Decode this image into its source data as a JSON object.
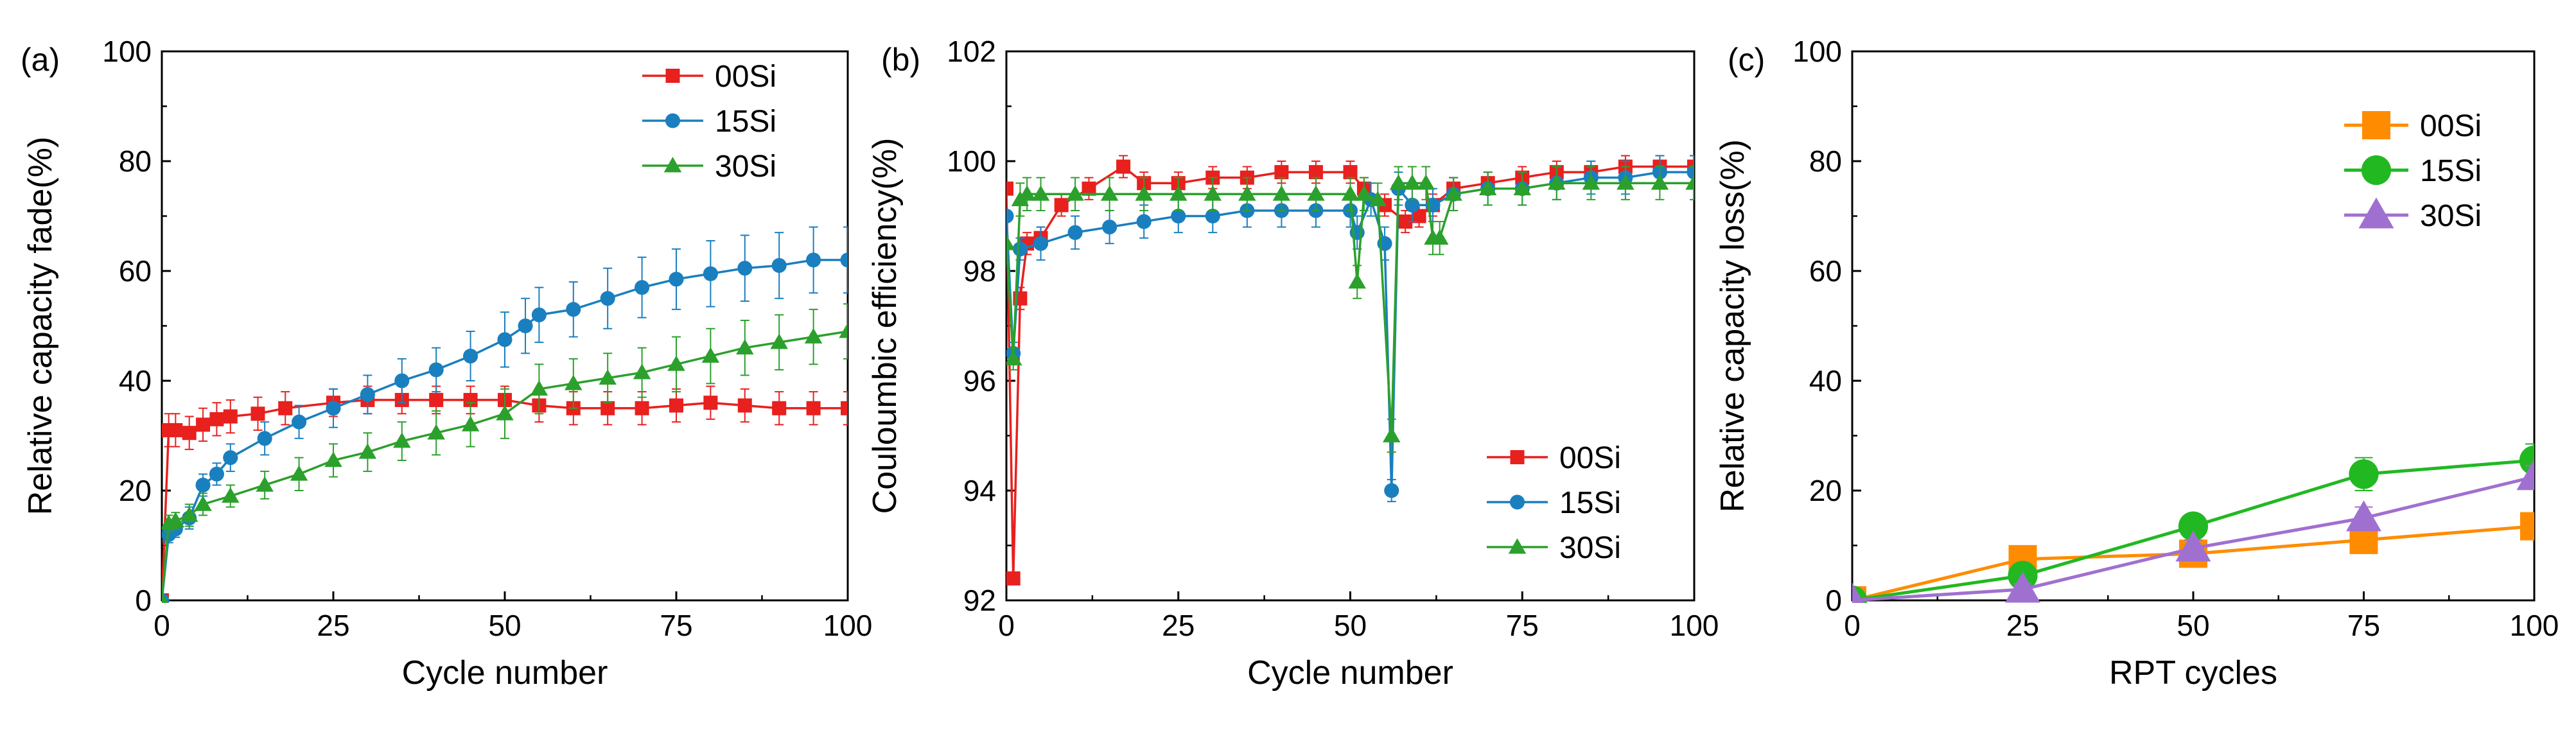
{
  "colors": {
    "s00": "#e8201e",
    "s15": "#1a7fbf",
    "s30": "#2ca02c",
    "c00": "#ff8c00",
    "c15": "#22b822",
    "c30": "#a070d0"
  },
  "chart_data": [
    {
      "id": "a",
      "type": "line",
      "panel_label": "(a)",
      "xlabel": "Cycle number",
      "ylabel": "Relative capacity fade(%)",
      "xlim": [
        0,
        100
      ],
      "ylim": [
        0,
        100
      ],
      "xticks": [
        "0",
        "25",
        "50",
        "75",
        "100"
      ],
      "yticks": [
        "0",
        "20",
        "40",
        "60",
        "80",
        "100"
      ],
      "legend_position": "top-right",
      "series": [
        {
          "name": "00Si",
          "marker": "square",
          "color_key": "s00",
          "x": [
            0,
            1,
            2,
            4,
            6,
            8,
            10,
            14,
            18,
            25,
            30,
            35,
            40,
            45,
            50,
            55,
            60,
            65,
            70,
            75,
            80,
            85,
            90,
            95,
            100
          ],
          "y": [
            0,
            31,
            31,
            30.5,
            32,
            33,
            33.5,
            34,
            35,
            36,
            36.5,
            36.5,
            36.5,
            36.5,
            36.5,
            35.5,
            35,
            35,
            35,
            35.5,
            36,
            35.5,
            35,
            35,
            35
          ],
          "err": [
            0,
            3,
            3,
            3,
            3,
            3,
            3,
            3,
            3,
            2.5,
            2.5,
            2.5,
            2.5,
            2.5,
            2.5,
            3,
            3,
            3,
            3,
            3,
            3,
            3,
            3,
            3,
            3
          ]
        },
        {
          "name": "15Si",
          "marker": "circle",
          "color_key": "s15",
          "x": [
            0,
            1,
            2,
            4,
            6,
            8,
            10,
            15,
            20,
            25,
            30,
            35,
            40,
            45,
            50,
            53,
            55,
            60,
            65,
            70,
            75,
            80,
            85,
            90,
            95,
            100
          ],
          "y": [
            0,
            12,
            13,
            15,
            21,
            23,
            26,
            29.5,
            32.5,
            35,
            37.5,
            40,
            42,
            44.5,
            47.5,
            50,
            52,
            53,
            55,
            57,
            58.5,
            59.5,
            60.5,
            61,
            62,
            62
          ],
          "err": [
            0,
            1.5,
            1.5,
            2,
            2,
            2,
            2.5,
            3,
            3,
            3.5,
            3.5,
            4,
            4,
            4.5,
            5,
            5,
            5,
            5,
            5.5,
            5.5,
            5.5,
            6,
            6,
            6,
            6,
            6
          ]
        },
        {
          "name": "30Si",
          "marker": "triangle",
          "color_key": "s30",
          "x": [
            0,
            1,
            2,
            4,
            6,
            10,
            15,
            20,
            25,
            30,
            35,
            40,
            45,
            50,
            55,
            60,
            65,
            70,
            75,
            80,
            85,
            90,
            95,
            100
          ],
          "y": [
            0,
            14,
            14.5,
            15.5,
            17.5,
            19,
            21,
            23,
            25.5,
            27,
            29,
            30.5,
            32,
            34,
            38.5,
            39.5,
            40.5,
            41.5,
            43,
            44.5,
            46,
            47,
            48,
            49
          ],
          "err": [
            0,
            1.5,
            1.5,
            2,
            2,
            2,
            2.5,
            3,
            3,
            3.5,
            3.5,
            4,
            4,
            4.5,
            4.5,
            4.5,
            4.5,
            4.5,
            5,
            5,
            5,
            5,
            5,
            5
          ]
        }
      ]
    },
    {
      "id": "b",
      "type": "line",
      "panel_label": "(b)",
      "xlabel": "Cycle number",
      "ylabel": "Couloumbic efficiency(%)",
      "xlim": [
        0,
        100
      ],
      "ylim": [
        92,
        102
      ],
      "xticks": [
        "0",
        "25",
        "50",
        "75",
        "100"
      ],
      "yticks": [
        "92",
        "94",
        "96",
        "98",
        "100",
        "102"
      ],
      "legend_position": "bottom-right",
      "series": [
        {
          "name": "00Si",
          "marker": "square",
          "color_key": "s00",
          "x": [
            0,
            1,
            2,
            3,
            5,
            8,
            12,
            17,
            20,
            25,
            30,
            35,
            40,
            45,
            50,
            52,
            55,
            58,
            60,
            62,
            65,
            70,
            75,
            80,
            85,
            90,
            95,
            100
          ],
          "y": [
            99.5,
            92.4,
            97.5,
            98.5,
            98.6,
            99.2,
            99.5,
            99.9,
            99.6,
            99.6,
            99.7,
            99.7,
            99.8,
            99.8,
            99.8,
            99.5,
            99.2,
            98.9,
            99.0,
            99.2,
            99.5,
            99.6,
            99.7,
            99.8,
            99.8,
            99.9,
            99.9,
            99.9
          ],
          "err": [
            0,
            0.1,
            0.2,
            0.2,
            0.2,
            0.2,
            0.2,
            0.2,
            0.2,
            0.2,
            0.2,
            0.2,
            0.2,
            0.2,
            0.2,
            0.2,
            0.2,
            0.2,
            0.2,
            0.2,
            0.2,
            0.2,
            0.2,
            0.2,
            0.2,
            0.2,
            0.2,
            0.2
          ]
        },
        {
          "name": "15Si",
          "marker": "circle",
          "color_key": "s15",
          "x": [
            0,
            1,
            2,
            5,
            10,
            15,
            20,
            25,
            30,
            35,
            40,
            45,
            50,
            51,
            53,
            55,
            56,
            57,
            59,
            62,
            65,
            70,
            75,
            80,
            85,
            90,
            95,
            100
          ],
          "y": [
            99.0,
            96.5,
            98.4,
            98.5,
            98.7,
            98.8,
            98.9,
            99.0,
            99.0,
            99.1,
            99.1,
            99.1,
            99.1,
            98.7,
            99.3,
            98.5,
            94.0,
            99.5,
            99.2,
            99.2,
            99.4,
            99.5,
            99.5,
            99.6,
            99.7,
            99.7,
            99.8,
            99.8
          ],
          "err": [
            0,
            0.2,
            0.2,
            0.3,
            0.3,
            0.3,
            0.3,
            0.3,
            0.3,
            0.3,
            0.3,
            0.3,
            0.3,
            0.3,
            0.3,
            0.3,
            0.2,
            0.3,
            0.3,
            0.3,
            0.3,
            0.3,
            0.3,
            0.3,
            0.3,
            0.3,
            0.3,
            0.3
          ]
        },
        {
          "name": "30Si",
          "marker": "triangle",
          "color_key": "s30",
          "x": [
            0,
            1,
            2,
            3,
            5,
            10,
            15,
            20,
            25,
            30,
            35,
            40,
            45,
            50,
            51,
            52,
            54,
            56,
            57,
            59,
            61,
            62,
            63,
            65,
            70,
            75,
            80,
            85,
            90,
            95,
            100
          ],
          "y": [
            98.5,
            96.4,
            99.3,
            99.4,
            99.4,
            99.4,
            99.4,
            99.4,
            99.4,
            99.4,
            99.4,
            99.4,
            99.4,
            99.4,
            97.8,
            99.4,
            99.3,
            95.0,
            99.6,
            99.6,
            99.6,
            98.6,
            98.6,
            99.4,
            99.5,
            99.5,
            99.6,
            99.6,
            99.6,
            99.6,
            99.6
          ],
          "err": [
            0,
            0.2,
            0.3,
            0.3,
            0.3,
            0.3,
            0.3,
            0.3,
            0.3,
            0.3,
            0.3,
            0.3,
            0.3,
            0.3,
            0.3,
            0.3,
            0.3,
            0.3,
            0.3,
            0.3,
            0.3,
            0.3,
            0.3,
            0.3,
            0.3,
            0.3,
            0.3,
            0.3,
            0.3,
            0.3,
            0.3
          ]
        }
      ]
    },
    {
      "id": "c",
      "type": "line",
      "panel_label": "(c)",
      "xlabel": "RPT cycles",
      "ylabel": "Relative capacity loss(%)",
      "xlim": [
        0,
        100
      ],
      "ylim": [
        0,
        100
      ],
      "xticks": [
        "0",
        "25",
        "50",
        "75",
        "100"
      ],
      "yticks": [
        "0",
        "20",
        "40",
        "60",
        "80",
        "100"
      ],
      "legend_position": "top-right",
      "series": [
        {
          "name": "00Si",
          "marker": "square",
          "color_key": "c00",
          "x": [
            0,
            25,
            50,
            75,
            100
          ],
          "y": [
            0,
            7.5,
            8.5,
            11,
            13.5
          ],
          "err": [
            0,
            1.5,
            1.5,
            1.5,
            1.5
          ]
        },
        {
          "name": "15Si",
          "marker": "circle",
          "color_key": "c15",
          "x": [
            0,
            25,
            50,
            75,
            100
          ],
          "y": [
            0,
            4.5,
            13.5,
            23,
            25.5
          ],
          "err": [
            0,
            1.5,
            1.5,
            3,
            3
          ]
        },
        {
          "name": "30Si",
          "marker": "triangle",
          "color_key": "c30",
          "x": [
            0,
            25,
            50,
            75,
            100
          ],
          "y": [
            0,
            2,
            9.5,
            15,
            22.5
          ],
          "err": [
            0,
            1,
            1.5,
            2,
            2
          ]
        }
      ]
    }
  ]
}
